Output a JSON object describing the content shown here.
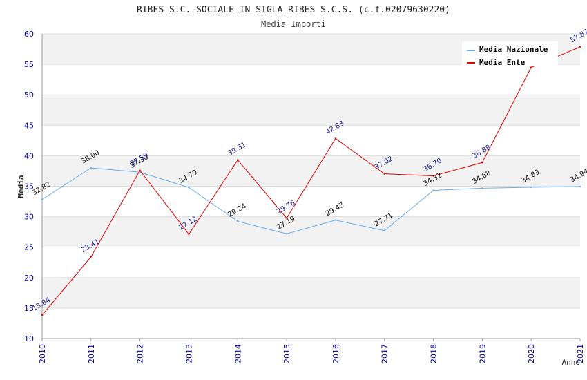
{
  "chart_data": {
    "type": "line",
    "title": "RIBES S.C. SOCIALE IN SIGLA RIBES S.C.S. (c.f.02079630220)",
    "subtitle": "Media Importi",
    "xlabel": "Anno",
    "ylabel": "Media",
    "ylim": [
      10,
      60
    ],
    "yticks": [
      10,
      15,
      20,
      25,
      30,
      35,
      40,
      45,
      50,
      55,
      60
    ],
    "categories": [
      "2010",
      "2011",
      "2012",
      "2013",
      "2014",
      "2015",
      "2016",
      "2017",
      "2018",
      "2019",
      "2020",
      "2021"
    ],
    "legend_position": "top-right",
    "grid": true,
    "series": [
      {
        "name": "Media Nazionale",
        "color": "#6aaee8",
        "values": [
          32.82,
          38.0,
          37.3,
          34.79,
          29.24,
          27.19,
          29.43,
          27.71,
          34.32,
          34.68,
          34.83,
          34.94
        ],
        "labels": [
          "32.82",
          "38.00",
          "37.30",
          "34.79",
          "29.24",
          "27.19",
          "29.43",
          "27.71",
          "34.32",
          "34.68",
          "34.83",
          "34.94"
        ]
      },
      {
        "name": "Media Ente",
        "color": "#e00000",
        "values": [
          13.84,
          23.41,
          37.59,
          27.12,
          39.31,
          29.76,
          42.83,
          37.02,
          36.7,
          38.88,
          54.5,
          57.87
        ],
        "labels": [
          "13.84",
          "23.41",
          "37.59",
          "27.12",
          "39.31",
          "29.76",
          "42.83",
          "37.02",
          "36.70",
          "38.88",
          "",
          "57.87"
        ]
      }
    ]
  }
}
